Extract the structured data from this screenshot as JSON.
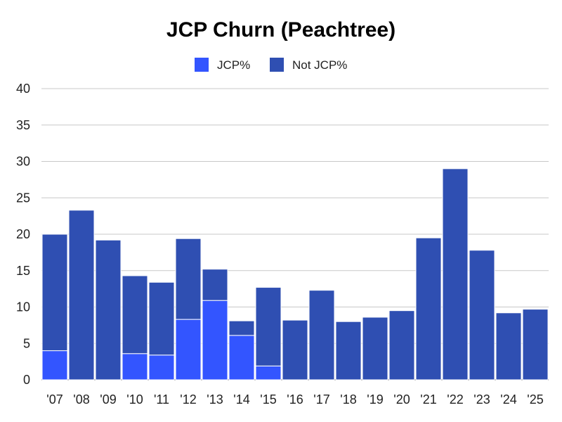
{
  "chart_data": {
    "type": "bar",
    "stacked": true,
    "title": "JCP Churn (Peachtree)",
    "xlabel": "",
    "ylabel": "",
    "ylim": [
      0,
      40
    ],
    "yticks": [
      0,
      5,
      10,
      15,
      20,
      25,
      30,
      35,
      40
    ],
    "grid": true,
    "legend_position": "top",
    "categories": [
      "'07",
      "'08",
      "'09",
      "'10",
      "'11",
      "'12",
      "'13",
      "'14",
      "'15",
      "'16",
      "'17",
      "'18",
      "'19",
      "'20",
      "'21",
      "'22",
      "'23",
      "'24",
      "'25"
    ],
    "series": [
      {
        "name": "JCP%",
        "color": "#3355ff",
        "values": [
          4.0,
          0,
          0,
          3.6,
          3.4,
          8.3,
          10.9,
          6.1,
          1.9,
          0,
          0,
          0,
          0,
          0,
          0,
          0,
          0,
          0,
          0
        ]
      },
      {
        "name": "Not JCP%",
        "color": "#2f4fb2",
        "values": [
          16.0,
          23.3,
          19.2,
          10.7,
          10.0,
          11.1,
          4.3,
          2.0,
          10.8,
          8.2,
          12.3,
          8.0,
          8.6,
          9.5,
          19.5,
          29.0,
          17.8,
          9.2,
          9.7
        ]
      }
    ]
  }
}
